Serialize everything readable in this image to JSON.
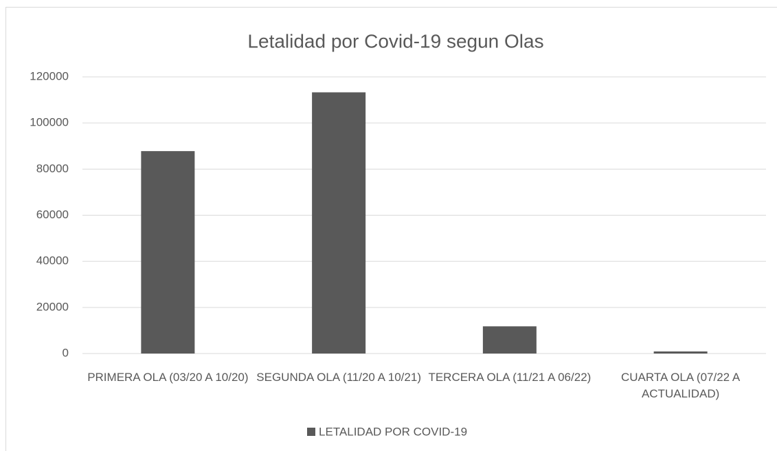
{
  "chart_data": {
    "type": "bar",
    "title": "Letalidad por Covid-19 segun Olas",
    "categories": [
      "PRIMERA OLA (03/20 A 10/20)",
      "SEGUNDA OLA (11/20 A 10/21)",
      "TERCERA OLA (11/21 A 06/22)",
      "CUARTA OLA (07/22 A ACTUALIDAD)"
    ],
    "series": [
      {
        "name": "LETALIDAD POR COVID-19",
        "color": "#595959",
        "values": [
          87800,
          113300,
          11800,
          900
        ]
      }
    ],
    "ylim": [
      0,
      120000
    ],
    "yticks": [
      0,
      20000,
      40000,
      60000,
      80000,
      100000,
      120000
    ],
    "grid": true,
    "legend": "bottom"
  }
}
